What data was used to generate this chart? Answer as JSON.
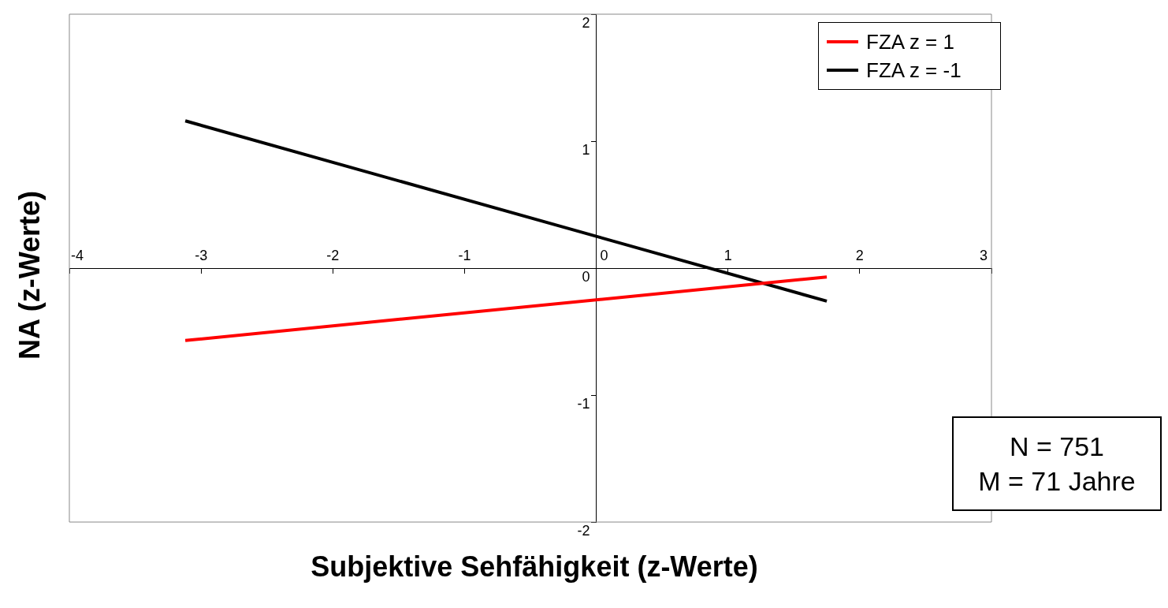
{
  "chart_data": {
    "type": "line",
    "xlabel": "Subjektive Sehfähigkeit (z-Werte)",
    "ylabel": "NA (z-Werte)",
    "x": [
      -3.12,
      1.75
    ],
    "series": [
      {
        "name": "FZA z = 1",
        "color": "#ff0000",
        "values": [
          -0.57,
          -0.07
        ]
      },
      {
        "name": "FZA z = -1",
        "color": "#000000",
        "values": [
          1.16,
          -0.26
        ]
      }
    ],
    "xlim": [
      -4,
      3
    ],
    "xticks": [
      -4,
      -3,
      -2,
      -1,
      0,
      1,
      2,
      3
    ],
    "ylim": [
      -2,
      2
    ],
    "yticks": [
      -2,
      -1,
      0,
      1,
      2
    ],
    "grid": false,
    "legend": "top right",
    "marker": "none",
    "line_style": "solid",
    "annotations": [
      "N = 751",
      "M = 71 Jahre"
    ]
  }
}
